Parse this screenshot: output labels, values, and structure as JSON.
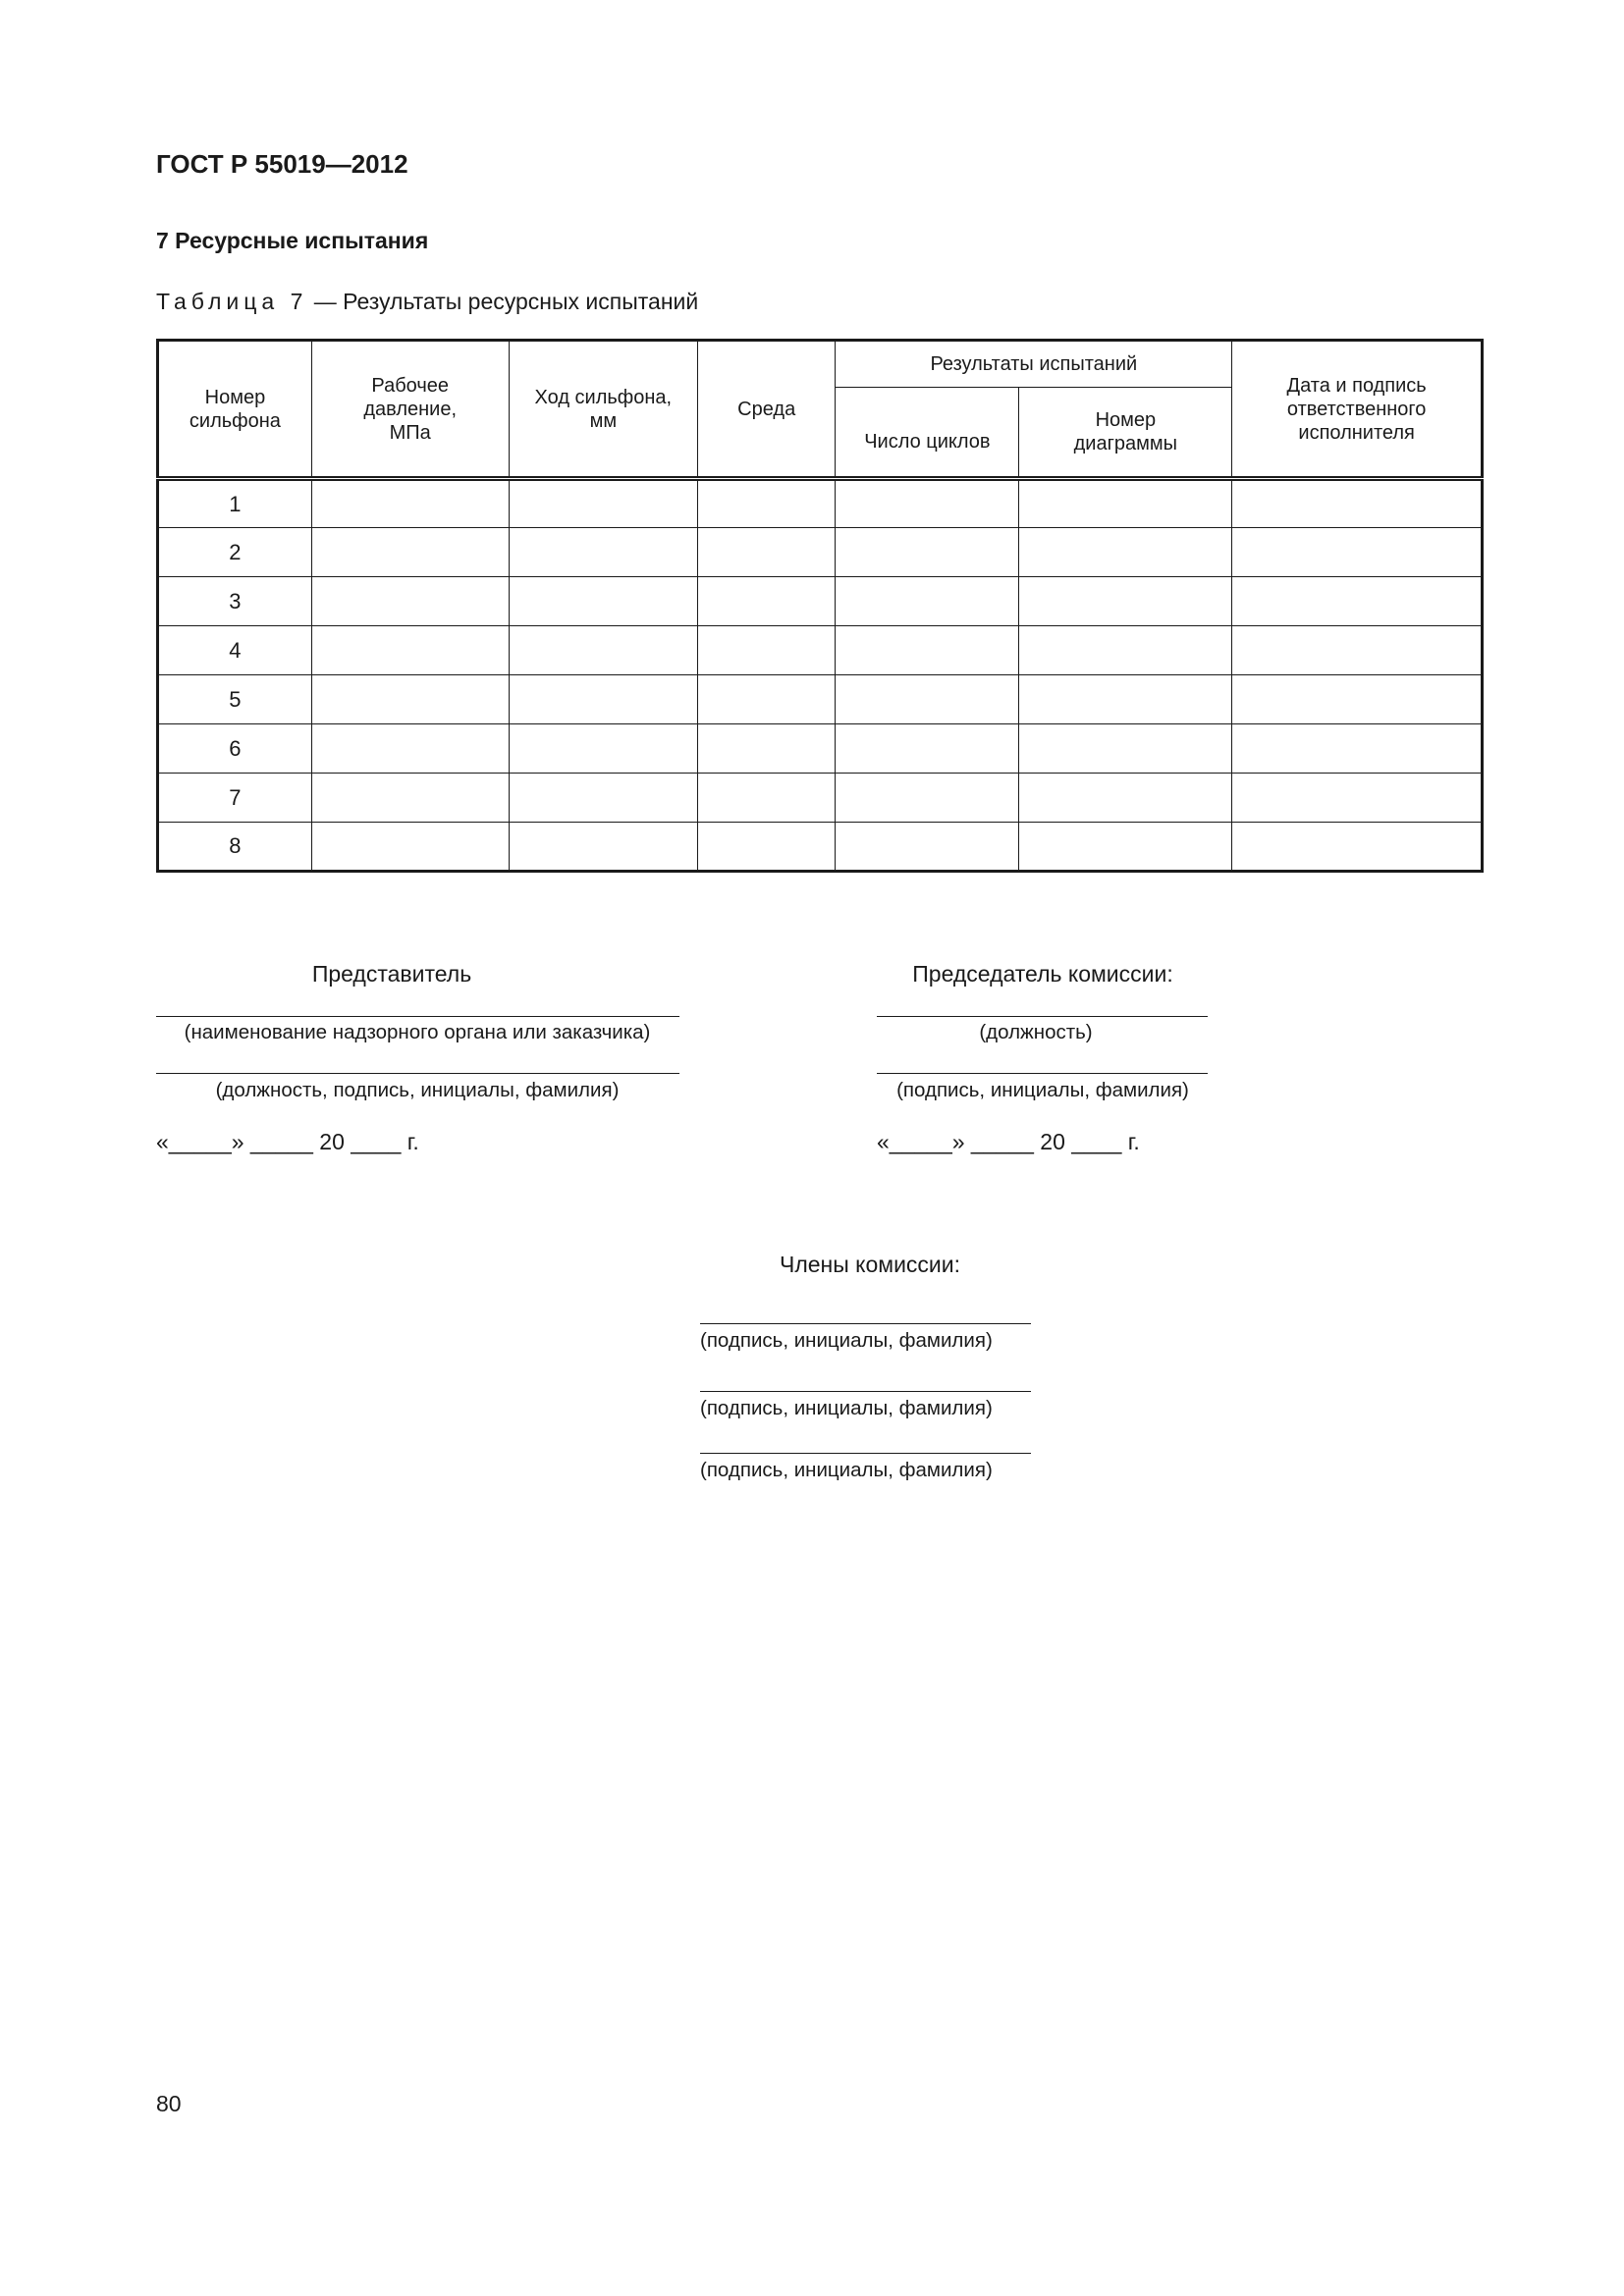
{
  "header": {
    "doc_id": "ГОСТ Р 55019—2012"
  },
  "section": {
    "title": "7  Ресурсные испытания"
  },
  "table": {
    "caption_prefix": "Таблица 7",
    "caption_text": " — Результаты ресурсных испытаний",
    "headers": {
      "number": "Номер сильфона",
      "pressure": "Рабочее давление, МПа",
      "stroke": "Ход сильфона, мм",
      "medium": "Среда",
      "results": "Результаты испытаний",
      "cycles": "Число циклов",
      "diagram": "Номер диаграммы",
      "signature": "Дата и подпись ответственного исполнителя"
    },
    "rows": [
      "1",
      "2",
      "3",
      "4",
      "5",
      "6",
      "7",
      "8"
    ]
  },
  "representative": {
    "title": "Представитель",
    "caption1": "(наименование надзорного органа или заказчика)",
    "caption2": "(должность, подпись, инициалы, фамилия)",
    "date": "«_____» _____ 20 ____ г."
  },
  "chairman": {
    "title": "Председатель комиссии:",
    "caption1": "(должность)",
    "caption2": "(подпись, инициалы, фамилия)",
    "date": "«_____» _____ 20 ____ г."
  },
  "members": {
    "title": "Члены комиссии:",
    "captions": [
      "(подпись, инициалы, фамилия)",
      "(подпись, инициалы, фамилия)",
      "(подпись, инициалы, фамилия)"
    ]
  },
  "page_number": "80"
}
